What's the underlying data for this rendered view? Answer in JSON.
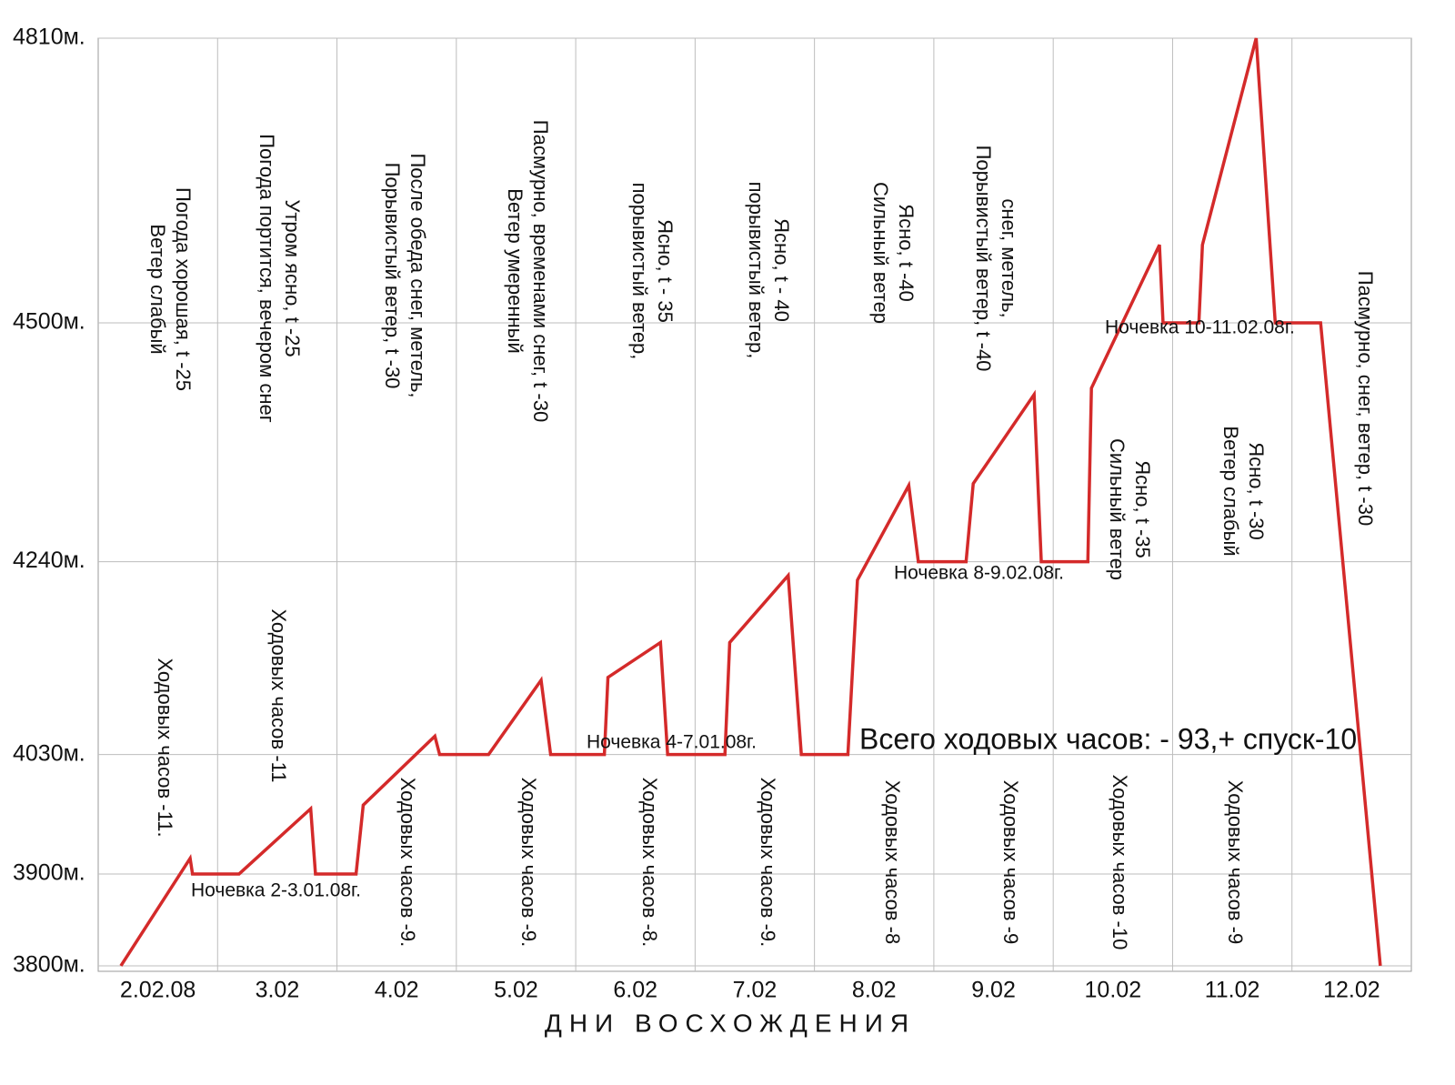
{
  "chart_data": {
    "type": "line",
    "x_label": "ДНИ ВОСХОЖДЕНИЯ",
    "categories": [
      "2.02.08",
      "3.02",
      "4.02",
      "5.02",
      "6.02",
      "7.02",
      "8.02",
      "9.02",
      "10.02",
      "11.02",
      "12.02"
    ],
    "xlim": [
      0,
      11
    ],
    "ylim": [
      3794,
      4810
    ],
    "yticks": [
      {
        "value": 3800,
        "label": "3800м."
      },
      {
        "value": 3900,
        "label": "3900м."
      },
      {
        "value": 4030,
        "label": "4030м."
      },
      {
        "value": 4240,
        "label": "4240м."
      },
      {
        "value": 4500,
        "label": "4500м."
      },
      {
        "value": 4810,
        "label": "4810м."
      }
    ],
    "grid": true,
    "color": "#d42a2a",
    "x": [
      0.19,
      0.77,
      0.79,
      1.18,
      1.78,
      1.82,
      2.16,
      2.22,
      2.82,
      2.86,
      3.27,
      3.71,
      3.79,
      4.24,
      4.27,
      4.71,
      4.77,
      5.25,
      5.29,
      5.78,
      5.89,
      6.28,
      6.36,
      6.79,
      6.87,
      7.27,
      7.33,
      7.84,
      7.9,
      8.29,
      8.32,
      8.89,
      8.92,
      9.22,
      9.25,
      9.7,
      9.86,
      10.24,
      10.74
    ],
    "values": [
      3800,
      3917,
      3900,
      3900,
      3971,
      3900,
      3900,
      3975,
      4050,
      4030,
      4030,
      4111,
      4030,
      4030,
      4114,
      4152,
      4030,
      4030,
      4152,
      4225,
      4030,
      4030,
      4220,
      4323,
      4240,
      4240,
      4325,
      4422,
      4240,
      4240,
      4429,
      4585,
      4500,
      4500,
      4585,
      4810,
      4500,
      4500,
      3800
    ],
    "annotations": {
      "weather": [
        [
          "Погода хорошая, t -25",
          "Ветер слабый"
        ],
        [
          "Утром ясно, t -25",
          "Погода портится, вечером снег"
        ],
        [
          "После обеда снег,  метель,",
          "Порывистый ветер, t -30"
        ],
        [
          "Пасмурно, временами снег,  t -30",
          "Ветер умеренный"
        ],
        [
          "Ясно, t - 35",
          "порывистый ветер,"
        ],
        [
          "Ясно, t - 40",
          "порывистый ветер,"
        ],
        [
          "Ясно, t -40",
          "Сильный ветер"
        ],
        [
          "снег,  метель,",
          "Порывистый ветер, t -40"
        ],
        [
          "Ясно, t -35",
          "Сильный ветер"
        ],
        [
          "Ясно, t -30",
          "Ветер слабый"
        ],
        [
          "Пасмурно, снег, ветер, t -30"
        ]
      ],
      "hours": [
        "Ходовых часов -11.",
        "Ходовых часов -11",
        "Ходовых часов -9.",
        "Ходовых часов -9.",
        "Ходовых часов -8.",
        "Ходовых часов -9.",
        "Ходовых часов -8",
        "Ходовых часов -9",
        "Ходовых часов -10",
        "Ходовых часов -9"
      ],
      "overnight": [
        "Ночевка  2-3.01.08г.",
        "Ночевка  4-7.01.08г.",
        "Ночевка  8-9.02.08г.",
        "Ночевка  10-11.02.08г."
      ],
      "total": "Всего ходовых часов:  - 93,+ спуск-10"
    }
  }
}
